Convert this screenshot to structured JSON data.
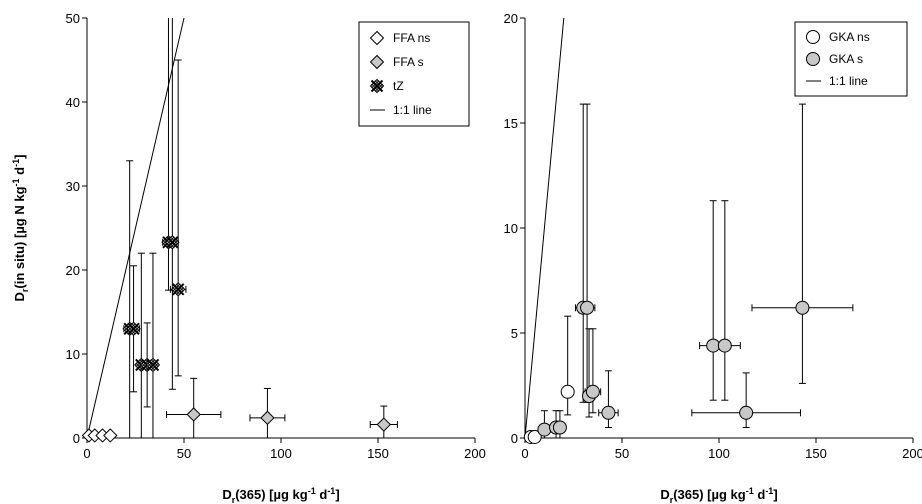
{
  "chart_data": [
    {
      "type": "scatter",
      "xlabel": {
        "base": "D",
        "sub": "r",
        "rest": "(365) [µg kg",
        "sup1": "-1",
        "mid": " d",
        "sup2": "-1",
        "end": "]"
      },
      "ylabel": {
        "base": "D",
        "sub": "r",
        "rest": "(in situ) [µg N kg",
        "sup1": "-1",
        "mid": " d",
        "sup2": "-1",
        "end": "]"
      },
      "xlim": [
        0,
        200
      ],
      "ylim": [
        0,
        50
      ],
      "xticks": [
        "0",
        "50",
        "100",
        "150",
        "200"
      ],
      "yticks": [
        "0",
        "10",
        "20",
        "30",
        "40",
        "50"
      ],
      "grid": false,
      "legend_position": "top-right",
      "reference_line": {
        "name": "1:1 line",
        "slope": 1
      },
      "series": [
        {
          "name": "FFA ns",
          "marker": "diamond",
          "fill": "#ffffff",
          "points": [
            {
              "x": 1,
              "y": 0.3,
              "yerr": 0
            },
            {
              "x": 4,
              "y": 0.3,
              "yerr": 0
            },
            {
              "x": 8,
              "y": 0.3,
              "yerr": 0
            },
            {
              "x": 12,
              "y": 0.3,
              "yerr": 0
            }
          ]
        },
        {
          "name": "FFA s",
          "marker": "diamond",
          "fill": "#c8c8c8",
          "points": [
            {
              "x": 55,
              "y": 2.8,
              "xerr": 14,
              "yerr": 4.3
            },
            {
              "x": 93,
              "y": 2.4,
              "xerr": 9,
              "yerr": 3.5
            },
            {
              "x": 153,
              "y": 1.6,
              "xerr": 7,
              "yerr": 2.2
            }
          ]
        },
        {
          "name": "tZ",
          "marker": "cross-hatch",
          "fill": "#d0d0d0",
          "points": [
            {
              "x": 22,
              "y": 13,
              "xerr": 3,
              "yerr": 20
            },
            {
              "x": 24,
              "y": 13,
              "xerr": 3,
              "yerr": 7.5
            },
            {
              "x": 28,
              "y": 8.7,
              "xerr": 2,
              "yerr": 13.3
            },
            {
              "x": 31,
              "y": 8.7,
              "xerr": 2,
              "yerr": 5
            },
            {
              "x": 34,
              "y": 8.7,
              "xerr": 2,
              "yerr": 13.3
            },
            {
              "x": 42,
              "y": 23.3,
              "xerr": 3,
              "yerr": 36.7,
              "ylow": 5.7
            },
            {
              "x": 44,
              "y": 23.3,
              "xerr": 3,
              "yerr": 36.7,
              "ylow": 17.5
            },
            {
              "x": 47,
              "y": 17.7,
              "xerr": 4,
              "yerr": 27.3,
              "ylow": 10.3
            }
          ]
        }
      ]
    },
    {
      "type": "scatter",
      "xlabel": {
        "base": "D",
        "sub": "r",
        "rest": "(365) [µg kg",
        "sup1": "-1",
        "mid": " d",
        "sup2": "-1",
        "end": "]"
      },
      "xlim": [
        0,
        200
      ],
      "ylim": [
        0,
        20
      ],
      "xticks": [
        "0",
        "50",
        "100",
        "150",
        "200"
      ],
      "yticks": [
        "0",
        "5",
        "10",
        "15",
        "20"
      ],
      "grid": false,
      "legend_position": "top-right",
      "reference_line": {
        "name": "1:1 line",
        "slope": 1
      },
      "series": [
        {
          "name": "GKA ns",
          "marker": "circle",
          "fill": "#ffffff",
          "points": [
            {
              "x": 3,
              "y": 0.05,
              "yerr": 0
            },
            {
              "x": 5,
              "y": 0.05,
              "yerr": 0
            },
            {
              "x": 22,
              "y": 2.2,
              "xerr": 2,
              "yerr": 3.6,
              "ylow": 1.1
            }
          ]
        },
        {
          "name": "GKA s",
          "marker": "circle",
          "fill": "#c8c8c8",
          "points": [
            {
              "x": 10,
              "y": 0.4,
              "xerr": 2,
              "yerr": 0.9,
              "ylow": 0.4
            },
            {
              "x": 16,
              "y": 0.5,
              "xerr": 2,
              "yerr": 0.8,
              "ylow": 0.5
            },
            {
              "x": 18,
              "y": 0.5,
              "xerr": 2,
              "yerr": 0.8,
              "ylow": 0.5
            },
            {
              "x": 30,
              "y": 6.2,
              "xerr": 4,
              "yerr": 9.7,
              "ylow": 4.5
            },
            {
              "x": 32,
              "y": 6.2,
              "xerr": 4,
              "yerr": 9.7,
              "ylow": 4.5
            },
            {
              "x": 33,
              "y": 2.0,
              "xerr": 3,
              "yerr": 3.2,
              "ylow": 1.0
            },
            {
              "x": 35,
              "y": 2.2,
              "xerr": 4,
              "yerr": 3.0,
              "ylow": 1.0
            },
            {
              "x": 43,
              "y": 1.2,
              "xerr": 5,
              "yerr": 2.0,
              "ylow": 0.7
            },
            {
              "x": 97,
              "y": 4.4,
              "xerr": 7,
              "yerr": 6.9,
              "ylow": 2.6
            },
            {
              "x": 103,
              "y": 4.4,
              "xerr": 8,
              "yerr": 6.9,
              "ylow": 2.6
            },
            {
              "x": 114,
              "y": 1.2,
              "xerr": 28,
              "yerr": 1.9,
              "ylow": 0.7
            },
            {
              "x": 143,
              "y": 6.2,
              "xerr": 26,
              "yerr": 9.7,
              "ylow": 3.6
            }
          ]
        }
      ]
    }
  ]
}
